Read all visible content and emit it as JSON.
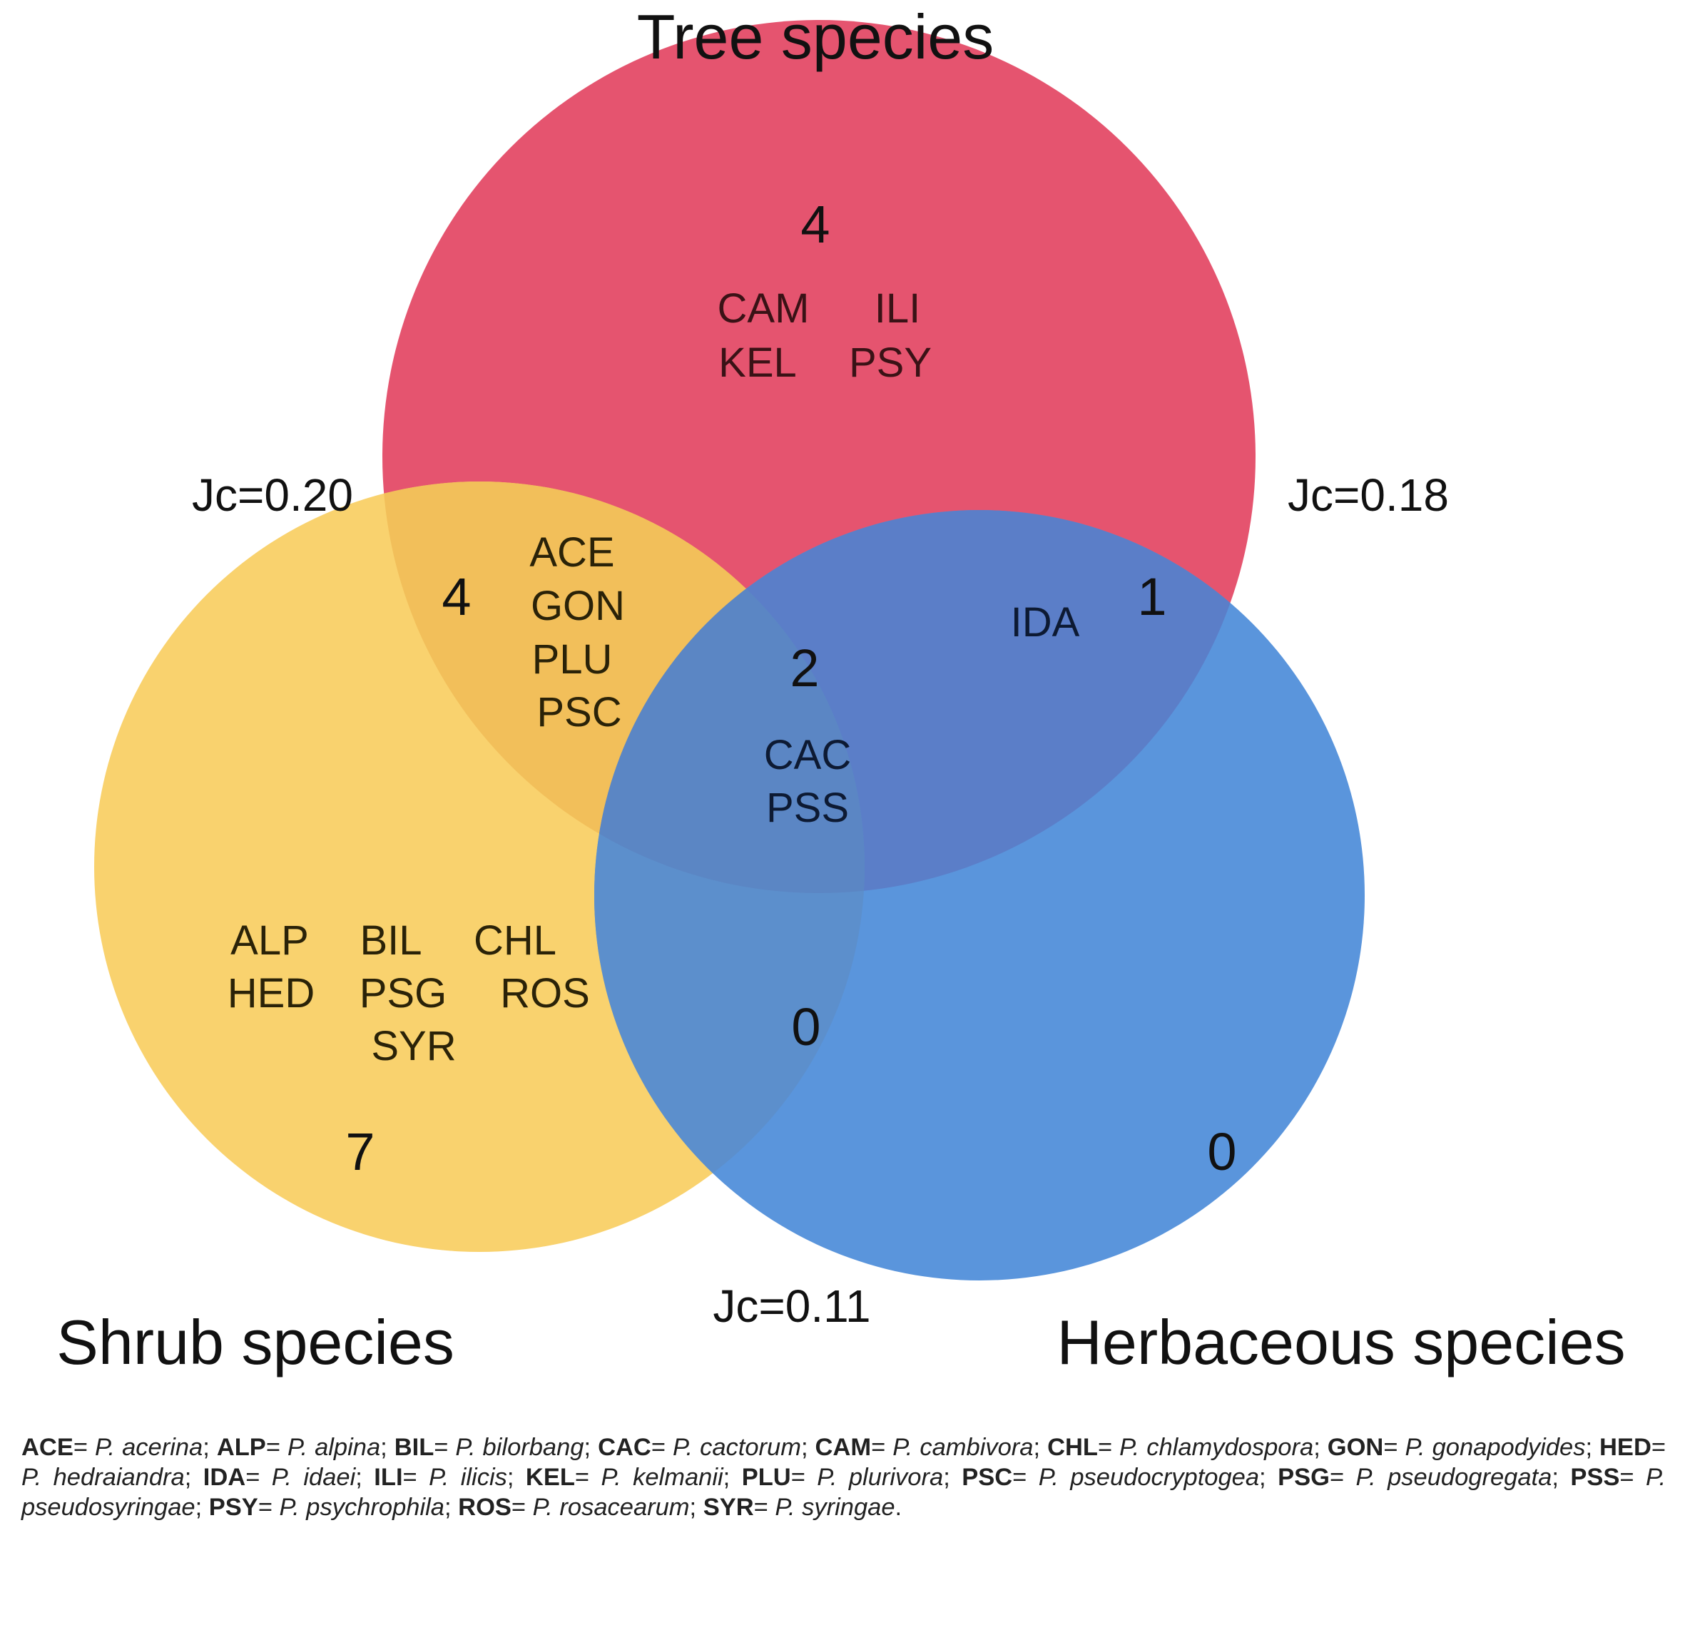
{
  "sets": {
    "tree": {
      "title": "Tree species",
      "color": "#e5546f",
      "only_count": "4",
      "only_codes": [
        "CAM",
        "ILI",
        "KEL",
        "PSY"
      ]
    },
    "shrub": {
      "title": "Shrub species",
      "color": "#f9d26e",
      "only_count": "7",
      "only_codes": [
        "ALP",
        "BIL",
        "CHL",
        "HED",
        "PSG",
        "ROS",
        "SYR"
      ]
    },
    "herb": {
      "title": "Herbaceous species",
      "color": "#5a95dc",
      "only_count": "0",
      "only_codes": []
    }
  },
  "overlaps": {
    "tree_shrub": {
      "count": "4",
      "codes": [
        "ACE",
        "GON",
        "PLU",
        "PSC"
      ],
      "color": "#f2bf5a"
    },
    "tree_herb": {
      "count": "1",
      "codes": [
        "IDA"
      ],
      "color": "#5b7ec8"
    },
    "shrub_herb": {
      "count": "0",
      "codes": [],
      "color": "#5c8fcc"
    },
    "all_three": {
      "count": "2",
      "codes": [
        "CAC",
        "PSS"
      ],
      "color": "#5b86c4"
    }
  },
  "jaccard": {
    "tree_shrub": "Jc=0.20",
    "tree_herb": "Jc=0.18",
    "shrub_herb": "Jc=0.11"
  },
  "legend": [
    {
      "abbr": "ACE",
      "name": "P. acerina"
    },
    {
      "abbr": "ALP",
      "name": "P. alpina"
    },
    {
      "abbr": "BIL",
      "name": "P. bilorbang"
    },
    {
      "abbr": "CAC",
      "name": "P. cactorum"
    },
    {
      "abbr": "CAM",
      "name": "P. cambivora"
    },
    {
      "abbr": "CHL",
      "name": "P. chlamydospora"
    },
    {
      "abbr": "GON",
      "name": "P. gonapodyides"
    },
    {
      "abbr": "HED",
      "name": "P. hedraiandra"
    },
    {
      "abbr": "IDA",
      "name": "P. idaei"
    },
    {
      "abbr": "ILI",
      "name": "P. ilicis"
    },
    {
      "abbr": "KEL",
      "name": "P. kelmanii"
    },
    {
      "abbr": "PLU",
      "name": "P. plurivora"
    },
    {
      "abbr": "PSC",
      "name": "P. pseudocryptogea"
    },
    {
      "abbr": "PSG",
      "name": "P. pseudogregata"
    },
    {
      "abbr": "PSS",
      "name": "P. pseudosyringae"
    },
    {
      "abbr": "PSY",
      "name": "P. psychrophila"
    },
    {
      "abbr": "ROS",
      "name": "P. rosacearum"
    },
    {
      "abbr": "SYR",
      "name": "P. syringae"
    }
  ]
}
